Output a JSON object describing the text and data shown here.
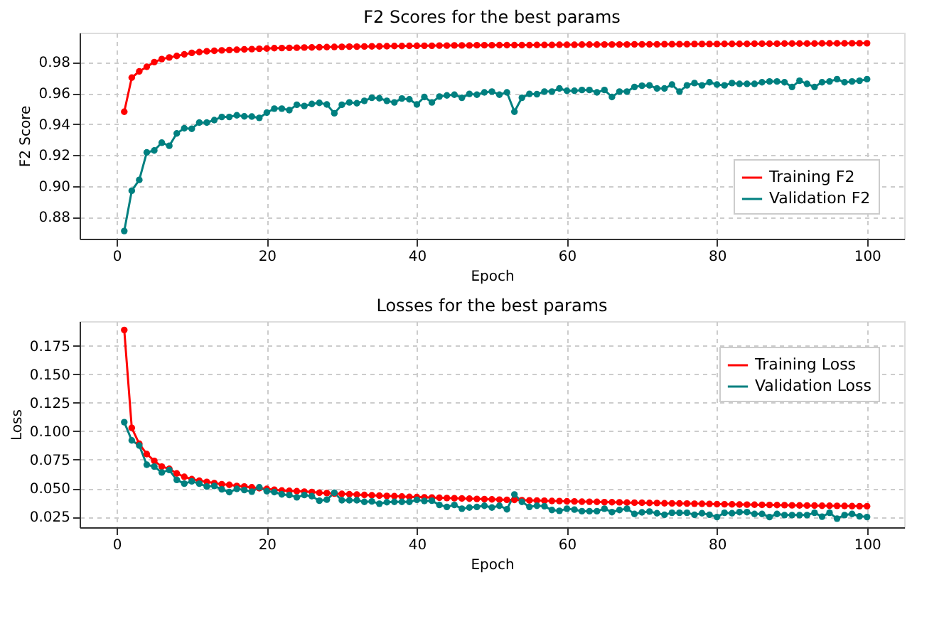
{
  "chart_data": [
    {
      "type": "line",
      "title": "F2 Scores for the best params",
      "xlabel": "Epoch",
      "ylabel": "F2 Score",
      "marker": "circle",
      "line_style": "solid",
      "grid": true,
      "legend": "bottom right",
      "xlim": [
        -4.95,
        104.95
      ],
      "xticks": [
        0,
        20,
        40,
        60,
        80,
        100
      ],
      "ylim": [
        0.866,
        0.999
      ],
      "yticks": [
        0.88,
        {
          "value": 0.9,
          "label": "0.90"
        },
        0.92,
        0.94,
        0.96,
        0.98
      ],
      "x": [
        1,
        2,
        3,
        4,
        5,
        6,
        7,
        8,
        9,
        10,
        11,
        12,
        13,
        14,
        15,
        16,
        17,
        18,
        19,
        20,
        21,
        22,
        23,
        24,
        25,
        26,
        27,
        28,
        29,
        30,
        31,
        32,
        33,
        34,
        35,
        36,
        37,
        38,
        39,
        40,
        41,
        42,
        43,
        44,
        45,
        46,
        47,
        48,
        49,
        50,
        51,
        52,
        53,
        54,
        55,
        56,
        57,
        58,
        59,
        60,
        61,
        62,
        63,
        64,
        65,
        66,
        67,
        68,
        69,
        70,
        71,
        72,
        73,
        74,
        75,
        76,
        77,
        78,
        79,
        80,
        81,
        82,
        83,
        84,
        85,
        86,
        87,
        88,
        89,
        90,
        91,
        92,
        93,
        94,
        95,
        96,
        97,
        98,
        99,
        100
      ],
      "series": [
        {
          "name": "Training F2",
          "color": "#ff0000",
          "values": [
            0.948,
            0.97,
            0.974,
            0.977,
            0.98,
            0.982,
            0.983,
            0.984,
            0.985,
            0.986,
            0.9865,
            0.987,
            0.9873,
            0.9876,
            0.9878,
            0.988,
            0.9882,
            0.9884,
            0.9886,
            0.9888,
            0.989,
            0.9891,
            0.9892,
            0.9893,
            0.9894,
            0.9895,
            0.9896,
            0.9897,
            0.9898,
            0.9899,
            0.99,
            0.99,
            0.9901,
            0.9902,
            0.9902,
            0.9903,
            0.9904,
            0.9904,
            0.9905,
            0.9905,
            0.9906,
            0.9906,
            0.9907,
            0.9907,
            0.9908,
            0.9908,
            0.9908,
            0.9909,
            0.9909,
            0.9909,
            0.991,
            0.991,
            0.991,
            0.991,
            0.991,
            0.9911,
            0.9911,
            0.9911,
            0.9912,
            0.9912,
            0.9912,
            0.9913,
            0.9913,
            0.9913,
            0.9914,
            0.9914,
            0.9914,
            0.9914,
            0.9915,
            0.9915,
            0.9915,
            0.9915,
            0.9916,
            0.9916,
            0.9916,
            0.9916,
            0.9917,
            0.9917,
            0.9917,
            0.9917,
            0.9918,
            0.9918,
            0.9918,
            0.9918,
            0.9919,
            0.9919,
            0.9919,
            0.9919,
            0.992,
            0.992,
            0.992,
            0.992,
            0.992,
            0.9921,
            0.9921,
            0.9921,
            0.9921,
            0.9922,
            0.9922,
            0.9922
          ]
        },
        {
          "name": "Validation F2",
          "color": "#008080",
          "values": [
            0.871,
            0.897,
            0.904,
            0.9217,
            0.923,
            0.928,
            0.926,
            0.934,
            0.9373,
            0.937,
            0.941,
            0.941,
            0.9426,
            0.9446,
            0.9446,
            0.9457,
            0.945,
            0.9449,
            0.944,
            0.9474,
            0.95,
            0.95,
            0.949,
            0.9525,
            0.9517,
            0.953,
            0.9537,
            0.9527,
            0.947,
            0.9525,
            0.954,
            0.9535,
            0.955,
            0.957,
            0.9567,
            0.955,
            0.954,
            0.9565,
            0.956,
            0.9527,
            0.9575,
            0.954,
            0.9578,
            0.9585,
            0.959,
            0.957,
            0.9595,
            0.959,
            0.9605,
            0.961,
            0.959,
            0.9605,
            0.948,
            0.957,
            0.9595,
            0.9593,
            0.961,
            0.961,
            0.963,
            0.9615,
            0.9615,
            0.962,
            0.962,
            0.9605,
            0.962,
            0.9575,
            0.961,
            0.961,
            0.964,
            0.9648,
            0.965,
            0.963,
            0.963,
            0.9655,
            0.961,
            0.965,
            0.9665,
            0.965,
            0.967,
            0.9655,
            0.965,
            0.9665,
            0.966,
            0.966,
            0.966,
            0.967,
            0.9675,
            0.9675,
            0.967,
            0.964,
            0.968,
            0.966,
            0.964,
            0.967,
            0.9675,
            0.969,
            0.967,
            0.9675,
            0.968,
            0.969
          ]
        }
      ]
    },
    {
      "type": "line",
      "title": "Losses for the best params",
      "xlabel": "Epoch",
      "ylabel": "Loss",
      "marker": "circle",
      "line_style": "solid",
      "grid": true,
      "legend": "top right",
      "xlim": [
        -4.95,
        104.95
      ],
      "xticks": [
        0,
        20,
        40,
        60,
        80,
        100
      ],
      "ylim": [
        0.0157,
        0.1967
      ],
      "yticks": [
        0.025,
        {
          "value": 0.05,
          "label": "0.050"
        },
        0.075,
        {
          "value": 0.1,
          "label": "0.100"
        },
        0.125,
        {
          "value": 0.15,
          "label": "0.150"
        },
        0.175
      ],
      "x": [
        1,
        2,
        3,
        4,
        5,
        6,
        7,
        8,
        9,
        10,
        11,
        12,
        13,
        14,
        15,
        16,
        17,
        18,
        19,
        20,
        21,
        22,
        23,
        24,
        25,
        26,
        27,
        28,
        29,
        30,
        31,
        32,
        33,
        34,
        35,
        36,
        37,
        38,
        39,
        40,
        41,
        42,
        43,
        44,
        45,
        46,
        47,
        48,
        49,
        50,
        51,
        52,
        53,
        54,
        55,
        56,
        57,
        58,
        59,
        60,
        61,
        62,
        63,
        64,
        65,
        66,
        67,
        68,
        69,
        70,
        71,
        72,
        73,
        74,
        75,
        76,
        77,
        78,
        79,
        80,
        81,
        82,
        83,
        84,
        85,
        86,
        87,
        88,
        89,
        90,
        91,
        92,
        93,
        94,
        95,
        96,
        97,
        98,
        99,
        100
      ],
      "series": [
        {
          "name": "Training Loss",
          "color": "#ff0000",
          "values": [
            0.189,
            0.103,
            0.089,
            0.08,
            0.074,
            0.069,
            0.067,
            0.063,
            0.06,
            0.058,
            0.0566,
            0.0556,
            0.0545,
            0.0535,
            0.053,
            0.052,
            0.0515,
            0.0508,
            0.05,
            0.0494,
            0.0487,
            0.048,
            0.0477,
            0.0474,
            0.047,
            0.0467,
            0.046,
            0.0457,
            0.0453,
            0.045,
            0.0447,
            0.0444,
            0.0441,
            0.0438,
            0.0435,
            0.0432,
            0.043,
            0.0427,
            0.0424,
            0.0422,
            0.042,
            0.0418,
            0.0416,
            0.0414,
            0.0412,
            0.041,
            0.0408,
            0.0406,
            0.0404,
            0.0402,
            0.04,
            0.0398,
            0.0397,
            0.0395,
            0.0393,
            0.0392,
            0.039,
            0.0388,
            0.0387,
            0.0385,
            0.0384,
            0.0382,
            0.0381,
            0.038,
            0.0378,
            0.0377,
            0.0376,
            0.0374,
            0.0373,
            0.0372,
            0.0371,
            0.037,
            0.0368,
            0.0367,
            0.0366,
            0.0365,
            0.0364,
            0.0363,
            0.0362,
            0.036,
            0.0359,
            0.0358,
            0.0357,
            0.0356,
            0.0355,
            0.0354,
            0.0353,
            0.0352,
            0.0351,
            0.035,
            0.0349,
            0.0348,
            0.0347,
            0.0346,
            0.0346,
            0.0345,
            0.0344,
            0.0343,
            0.0342,
            0.0342
          ]
        },
        {
          "name": "Validation Loss",
          "color": "#008080",
          "values": [
            0.108,
            0.092,
            0.0875,
            0.0706,
            0.069,
            0.0638,
            0.066,
            0.0573,
            0.054,
            0.056,
            0.054,
            0.0515,
            0.052,
            0.049,
            0.0466,
            0.0494,
            0.0484,
            0.047,
            0.0508,
            0.0474,
            0.0466,
            0.0446,
            0.044,
            0.042,
            0.044,
            0.043,
            0.039,
            0.04,
            0.046,
            0.0394,
            0.0394,
            0.0394,
            0.038,
            0.0384,
            0.0364,
            0.0377,
            0.038,
            0.038,
            0.038,
            0.0398,
            0.0388,
            0.039,
            0.0353,
            0.0336,
            0.0353,
            0.032,
            0.033,
            0.0336,
            0.0346,
            0.033,
            0.0346,
            0.0315,
            0.0445,
            0.038,
            0.0336,
            0.0346,
            0.0342,
            0.0308,
            0.0301,
            0.032,
            0.0312,
            0.0298,
            0.0298,
            0.0298,
            0.032,
            0.029,
            0.0308,
            0.032,
            0.0274,
            0.0288,
            0.0295,
            0.028,
            0.0267,
            0.0284,
            0.0284,
            0.0284,
            0.0267,
            0.028,
            0.0267,
            0.0247,
            0.0284,
            0.028,
            0.029,
            0.029,
            0.0274,
            0.0274,
            0.0247,
            0.0274,
            0.0264,
            0.0264,
            0.0264,
            0.0264,
            0.0284,
            0.025,
            0.0284,
            0.0233,
            0.0264,
            0.0274,
            0.0253,
            0.0247
          ]
        }
      ]
    }
  ]
}
